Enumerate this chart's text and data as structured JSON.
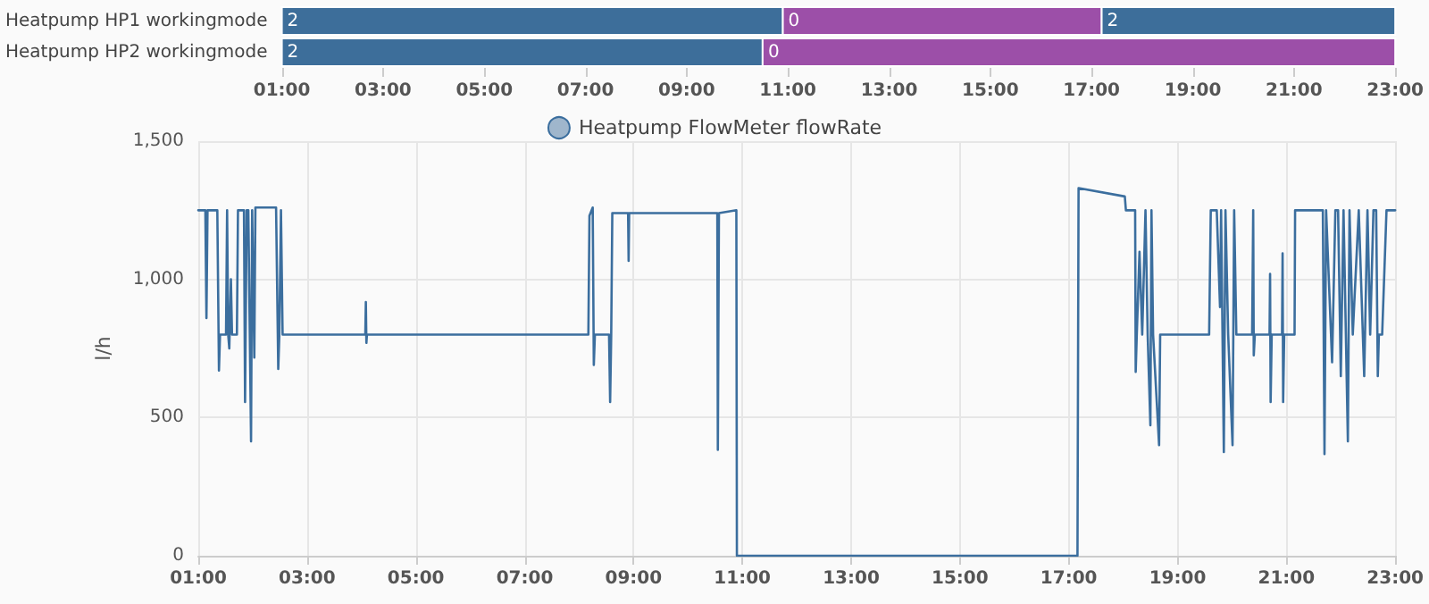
{
  "chart_data": [
    {
      "type": "bar",
      "orientation": "horizontal",
      "categories": [
        "Heatpump HP1 workingmode",
        "Heatpump HP2 workingmode"
      ],
      "xlim": [
        1,
        23
      ],
      "xticks": [
        {
          "value": 1,
          "label": "01:00"
        },
        {
          "value": 3,
          "label": "03:00"
        },
        {
          "value": 5,
          "label": "05:00"
        },
        {
          "value": 7,
          "label": "07:00"
        },
        {
          "value": 9,
          "label": "09:00"
        },
        {
          "value": 11,
          "label": "11:00"
        },
        {
          "value": 13,
          "label": "13:00"
        },
        {
          "value": 15,
          "label": "15:00"
        },
        {
          "value": 17,
          "label": "17:00"
        },
        {
          "value": 19,
          "label": "19:00"
        },
        {
          "value": 21,
          "label": "21:00"
        },
        {
          "value": 23,
          "label": "23:00"
        }
      ],
      "series": [
        {
          "color": "#3d6e9a",
          "base": [
            1,
            1
          ],
          "values": [
            9.9,
            9.5
          ]
        },
        {
          "color": "#9c4fa8",
          "base": [
            10.9,
            10.5
          ],
          "values": [
            6.3,
            12.5
          ]
        },
        {
          "color": "#3d6e9a",
          "base": [
            17.2,
            null
          ],
          "values": [
            5.8,
            null
          ]
        }
      ],
      "annotations": [
        {
          "text": "2",
          "x": 1,
          "y": "Heatpump HP1 workingmode"
        },
        {
          "text": "0",
          "x": 10.9,
          "y": "Heatpump HP1 workingmode"
        },
        {
          "text": "2",
          "x": 17.2,
          "y": "Heatpump HP1 workingmode"
        },
        {
          "text": "2",
          "x": 1,
          "y": "Heatpump HP2 workingmode"
        },
        {
          "text": "0",
          "x": 10.5,
          "y": "Heatpump HP2 workingmode"
        }
      ]
    },
    {
      "type": "line",
      "ylabel": "l/h",
      "legend": "top",
      "grid": true,
      "marker": "none",
      "line_style": "solid",
      "xlim": [
        1,
        23
      ],
      "xticks": [
        {
          "value": 1,
          "label": "01:00"
        },
        {
          "value": 3,
          "label": "03:00"
        },
        {
          "value": 5,
          "label": "05:00"
        },
        {
          "value": 7,
          "label": "07:00"
        },
        {
          "value": 9,
          "label": "09:00"
        },
        {
          "value": 11,
          "label": "11:00"
        },
        {
          "value": 13,
          "label": "13:00"
        },
        {
          "value": 15,
          "label": "15:00"
        },
        {
          "value": 17,
          "label": "17:00"
        },
        {
          "value": 19,
          "label": "19:00"
        },
        {
          "value": 21,
          "label": "21:00"
        },
        {
          "value": 23,
          "label": "23:00"
        }
      ],
      "ylim": [
        0,
        1500
      ],
      "yticks": [
        0,
        500,
        {
          "value": 1000,
          "label": "1,000"
        },
        {
          "value": 1500,
          "label": "1,500"
        }
      ],
      "series": [
        {
          "name": "Heatpump FlowMeter flowRate",
          "color": "#3b6e9e",
          "x": [
            1.0,
            1.13,
            1.15,
            1.17,
            1.35,
            1.38,
            1.4,
            1.51,
            1.53,
            1.55,
            1.57,
            1.6,
            1.62,
            1.71,
            1.73,
            1.84,
            1.86,
            1.89,
            1.92,
            1.97,
            1.99,
            2.01,
            2.03,
            2.05,
            2.43,
            2.47,
            2.49,
            2.52,
            2.55,
            4.07,
            4.08,
            4.09,
            4.1,
            8.17,
            8.19,
            8.25,
            8.27,
            8.29,
            8.55,
            8.57,
            8.59,
            8.61,
            8.9,
            8.91,
            8.92,
            10.54,
            10.55,
            10.57,
            10.89,
            10.9,
            17.16,
            17.18,
            18.03,
            18.05,
            18.22,
            18.23,
            18.25,
            18.3,
            18.35,
            18.41,
            18.45,
            18.5,
            18.52,
            18.55,
            18.66,
            18.68,
            19.58,
            19.61,
            19.72,
            19.78,
            19.8,
            19.85,
            19.88,
            19.93,
            20.01,
            20.04,
            20.08,
            20.37,
            20.39,
            20.4,
            20.42,
            20.69,
            20.7,
            20.71,
            20.73,
            20.92,
            20.93,
            20.94,
            20.96,
            21.15,
            21.16,
            21.67,
            21.7,
            21.73,
            21.84,
            21.9,
            21.95,
            22.0,
            22.05,
            22.13,
            22.16,
            22.22,
            22.33,
            22.43,
            22.49,
            22.54,
            22.6,
            22.65,
            22.68,
            22.7,
            22.76,
            22.84,
            23.0
          ],
          "values": [
            1250,
            1250,
            860,
            1250,
            1250,
            670,
            800,
            800,
            1250,
            800,
            750,
            1000,
            800,
            800,
            1250,
            1250,
            556,
            1250,
            1250,
            414,
            1250,
            1250,
            717,
            1260,
            1260,
            676,
            800,
            1250,
            800,
            800,
            918,
            770,
            800,
            800,
            1230,
            1260,
            690,
            800,
            800,
            556,
            800,
            1240,
            1240,
            1067,
            1240,
            1240,
            383,
            1240,
            1250,
            0,
            0,
            1330,
            1300,
            1250,
            1250,
            665,
            800,
            1100,
            800,
            1250,
            800,
            472,
            1250,
            800,
            400,
            800,
            800,
            1250,
            1250,
            900,
            1250,
            375,
            1250,
            800,
            400,
            1250,
            800,
            800,
            1250,
            725,
            800,
            800,
            1020,
            556,
            800,
            800,
            1094,
            556,
            800,
            800,
            1250,
            1250,
            368,
            1250,
            700,
            1250,
            1250,
            650,
            1250,
            414,
            1250,
            800,
            1250,
            650,
            1250,
            800,
            1250,
            1250,
            650,
            800,
            800,
            1250,
            1250
          ]
        }
      ]
    }
  ]
}
